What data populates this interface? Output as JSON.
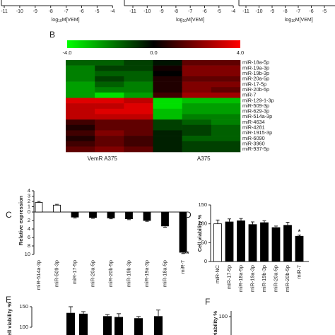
{
  "top_axes": [
    {
      "ticks": [
        -11,
        -10,
        -9,
        -8,
        -7,
        -6,
        -5,
        -4
      ],
      "xlabel": {
        "base": "log",
        "sub": "10",
        "rest": "M[VEM]"
      }
    },
    {
      "ticks": [
        -11,
        -10,
        -9,
        -8,
        -7,
        -6,
        -5,
        -4
      ],
      "xlabel": {
        "base": "log",
        "sub": "10",
        "rest": "M[VEM]"
      }
    },
    {
      "ticks": [
        -11,
        -10,
        -9,
        -8,
        -7,
        -6,
        -5,
        -4
      ],
      "xlabel": {
        "base": "log",
        "sub": "10",
        "rest": "M[VEM]"
      }
    }
  ],
  "panel_b": {
    "label": "B",
    "colorbar": {
      "min": -4,
      "max": 4,
      "colors": [
        "#00ff00",
        "#000000",
        "#ff0000"
      ],
      "ticks": [
        {
          "value": -4,
          "label": "-4.0"
        },
        {
          "value": 0,
          "label": "0.0"
        },
        {
          "value": 4,
          "label": "4.0"
        }
      ]
    },
    "rows": [
      "miR-18a-5p",
      "miR-19a-3p",
      "miR-19b-3p",
      "miR-20a-5p",
      "miR-17-5p",
      "miR-20b-5p",
      "miR-7",
      "miR-129-1-3p",
      "miR-509-3p",
      "miR-629-3p",
      "miR-514a-3p",
      "miR-4634",
      "miR-4281",
      "miR-1915-3p",
      "miR-6090",
      "miR-3960",
      "miR-937-5p"
    ],
    "groups": [
      "VemR A375",
      "A375"
    ],
    "values": [
      [
        -1.5,
        -1.5,
        -1,
        -0.3,
        1.5,
        1.5
      ],
      [
        -2,
        -1,
        -1,
        0.3,
        2,
        2
      ],
      [
        -2,
        -1.5,
        -1.5,
        0,
        2,
        2
      ],
      [
        -2,
        -1,
        -1.5,
        0.5,
        1.5,
        1.5
      ],
      [
        -2.5,
        -1.5,
        -2,
        0.5,
        2,
        2
      ],
      [
        -2.5,
        -2,
        -2,
        0.5,
        2,
        1.5
      ],
      [
        -2.5,
        -3.5,
        -2.5,
        1,
        2.5,
        2.5
      ],
      [
        3.5,
        3.5,
        3,
        -3.5,
        -3,
        -3
      ],
      [
        3,
        3,
        3.5,
        -3.5,
        -2.5,
        -2.5
      ],
      [
        3,
        3.5,
        3.5,
        -3,
        -2.5,
        -2.5
      ],
      [
        3,
        3,
        3,
        -3,
        -2,
        -2
      ],
      [
        1,
        1.5,
        1.5,
        -1,
        -1.5,
        -2
      ],
      [
        0.5,
        1.5,
        1.5,
        -1,
        -1,
        -1.5
      ],
      [
        1,
        2,
        1.5,
        -0.5,
        -1,
        -1.5
      ],
      [
        0.5,
        1.5,
        1,
        -0.5,
        -1.5,
        -1.5
      ],
      [
        1,
        1.5,
        1,
        -0.5,
        -1,
        -1
      ],
      [
        1.5,
        2,
        1.5,
        -0.5,
        -1,
        -1
      ]
    ]
  },
  "panel_c": {
    "label": "C",
    "ylabel": "Relative expression",
    "categories": [
      "miR-514a-3p",
      "miR-509-3p",
      "miR-17-5p",
      "miR-20a-5p",
      "miR-20b-5p",
      "miR-19b-3p",
      "miR-19a-3p",
      "miR-18a-5p",
      "miR-7"
    ],
    "values": [
      1.8,
      1.3,
      -1.2,
      -1.3,
      -1.4,
      -1.6,
      -2,
      -3.3,
      -9.5
    ],
    "errors": [
      0.2,
      0.15,
      0.2,
      0.2,
      0.2,
      0.2,
      0.2,
      0.3,
      0.3
    ],
    "colors": [
      "#ffffff",
      "#ffffff",
      "#000000",
      "#000000",
      "#000000",
      "#000000",
      "#000000",
      "#000000",
      "#000000"
    ],
    "yticks": [
      4,
      3,
      2,
      1,
      0,
      {
        "value": -2,
        "label": "2"
      },
      {
        "value": -4,
        "label": "4"
      },
      {
        "value": -6,
        "label": "6"
      },
      {
        "value": -8,
        "label": "8"
      },
      {
        "value": -10,
        "label": "10"
      }
    ],
    "annotation": {
      "text": "**",
      "index": 8
    }
  },
  "panel_d": {
    "label": "D",
    "ylabel": "Cell viability %",
    "categories": [
      "miR-NC",
      "miR-17-5p",
      "miR-18a-5p",
      "miR-19a-3p",
      "miR-19b-3p",
      "miR-20a-5p",
      "miR-20b-5p",
      "miR-7"
    ],
    "values": [
      100,
      105,
      108,
      98,
      103,
      90,
      96,
      67
    ],
    "errors": [
      10,
      8,
      6,
      7,
      5,
      4,
      8,
      3
    ],
    "colors": [
      "#ffffff",
      "#000000",
      "#000000",
      "#000000",
      "#000000",
      "#000000",
      "#000000",
      "#000000"
    ],
    "yticks": [
      0,
      50,
      100,
      150
    ],
    "annotation": {
      "text": "*",
      "index": 7
    }
  },
  "panel_e": {
    "label": "E",
    "ylabel": "Cell viability %",
    "values": [
      135,
      133,
      127,
      125,
      122,
      127
    ],
    "errors": [
      15,
      5,
      4,
      8,
      4,
      15
    ],
    "yticks": [
      100,
      150
    ]
  },
  "panel_f": {
    "label": "F",
    "ylabel": "Cell viability %",
    "yticks": [
      100
    ]
  }
}
